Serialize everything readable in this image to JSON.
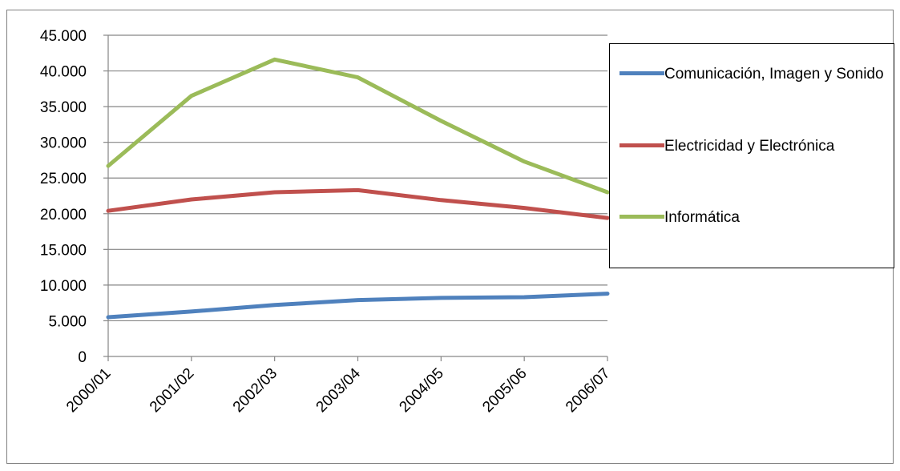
{
  "chart_data": {
    "type": "line",
    "categories": [
      "2000/01",
      "2001/02",
      "2002/03",
      "2003/04",
      "2004/05",
      "2005/06",
      "2006/07"
    ],
    "ylim": [
      0,
      45000
    ],
    "yticks": [
      0,
      5000,
      10000,
      15000,
      20000,
      25000,
      30000,
      35000,
      40000,
      45000
    ],
    "ytick_labels": [
      "0",
      "5.000",
      "10.000",
      "15.000",
      "20.000",
      "25.000",
      "30.000",
      "35.000",
      "40.000",
      "45.000"
    ],
    "grid": "horizontal",
    "legend_position": "right",
    "series": [
      {
        "name": "Comunicación, Imagen y Sonido",
        "color": "#4f81bd",
        "values": [
          5500,
          6300,
          7200,
          7900,
          8200,
          8300,
          8800
        ]
      },
      {
        "name": "Electricidad y Electrónica",
        "color": "#c0504d",
        "values": [
          20400,
          22000,
          23000,
          23300,
          21900,
          20800,
          19400
        ]
      },
      {
        "name": "Informática",
        "color": "#9bbb59",
        "values": [
          26700,
          36500,
          41600,
          39100,
          33000,
          27300,
          23000
        ]
      }
    ]
  }
}
